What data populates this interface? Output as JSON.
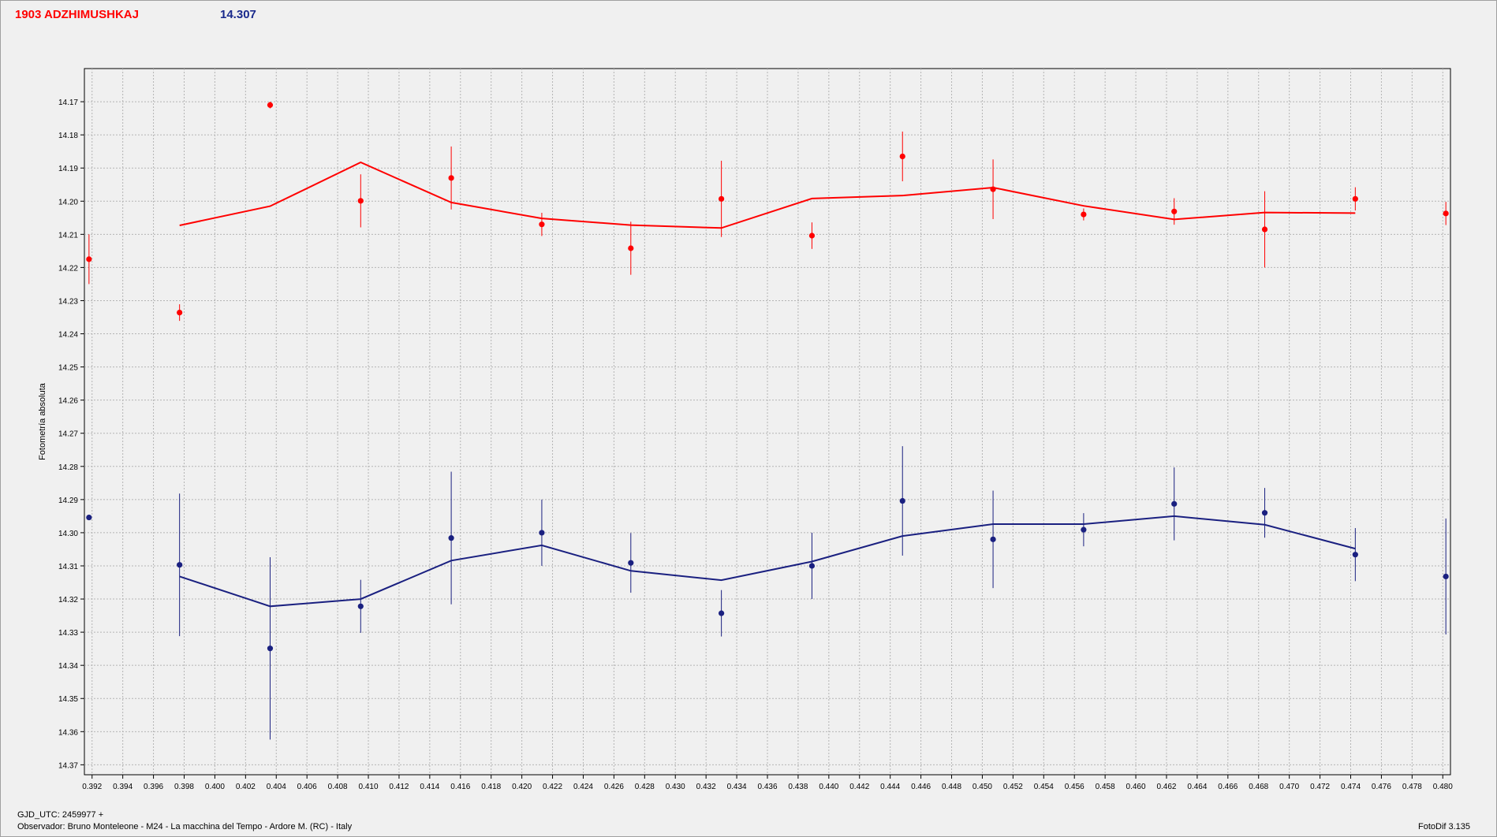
{
  "header": {
    "object_name": "1903 ADZHIMUSHKAJ",
    "reference_mag": "14.307"
  },
  "footer": {
    "gjd_label": "GJD_UTC: 2459977 +",
    "observer": "Observador: Bruno Monteleone - M24 - La macchina del Tempo - Ardore M. (RC) - Italy",
    "software": "FotoDif 3.135"
  },
  "colors": {
    "series_red": "#ff0000",
    "series_blue": "#1a2080",
    "grid": "#b4b4b4",
    "plot_bg": "#f0f0f0",
    "background": "#f0f0f0"
  },
  "chart_data": {
    "type": "scatter",
    "title": "",
    "xlabel": "",
    "ylabel": "Fotometría absoluta",
    "xlim": [
      0.3915,
      0.4805
    ],
    "ylim": [
      14.16,
      14.373
    ],
    "y_inverted": true,
    "grid": true,
    "x_ticks": [
      "0.392",
      "0.394",
      "0.396",
      "0.398",
      "0.400",
      "0.402",
      "0.404",
      "0.406",
      "0.408",
      "0.410",
      "0.412",
      "0.414",
      "0.416",
      "0.418",
      "0.420",
      "0.422",
      "0.424",
      "0.426",
      "0.428",
      "0.430",
      "0.432",
      "0.434",
      "0.436",
      "0.438",
      "0.440",
      "0.442",
      "0.444",
      "0.446",
      "0.448",
      "0.450",
      "0.452",
      "0.454",
      "0.456",
      "0.458",
      "0.460",
      "0.462",
      "0.464",
      "0.466",
      "0.468",
      "0.470",
      "0.472",
      "0.474",
      "0.476",
      "0.478",
      "0.480"
    ],
    "y_ticks": [
      "14.17",
      "14.18",
      "14.19",
      "14.20",
      "14.21",
      "14.22",
      "14.23",
      "14.24",
      "14.25",
      "14.26",
      "14.27",
      "14.28",
      "14.29",
      "14.30",
      "14.31",
      "14.32",
      "14.33",
      "14.34",
      "14.35",
      "14.36",
      "14.37"
    ],
    "series": [
      {
        "color": "#ff0000",
        "x": [
          0.3918,
          0.3977,
          0.4036,
          0.4095,
          0.4154,
          0.4213,
          0.4271,
          0.433,
          0.4389,
          0.4448,
          0.4507,
          0.4566,
          0.4625,
          0.4684,
          0.4743,
          0.4802
        ],
        "y": [
          14.2175,
          14.2336,
          14.171,
          14.1999,
          14.193,
          14.207,
          14.2142,
          14.1993,
          14.2104,
          14.1865,
          14.1964,
          14.204,
          14.2031,
          14.2085,
          14.1993,
          14.2037
        ],
        "err": [
          0.0075,
          0.0025,
          0.001,
          0.008,
          0.0095,
          0.0035,
          0.008,
          0.0115,
          0.004,
          0.0075,
          0.009,
          0.0018,
          0.004,
          0.0115,
          0.0035,
          0.0035
        ],
        "fit_x": [
          0.3977,
          0.4036,
          0.4095,
          0.4154,
          0.4213,
          0.4271,
          0.433,
          0.4389,
          0.4448,
          0.4507,
          0.4566,
          0.4625,
          0.4684,
          0.4743
        ],
        "fit_y": [
          14.2073,
          14.2015,
          14.1883,
          14.2004,
          14.2052,
          14.2072,
          14.2081,
          14.1992,
          14.1983,
          14.1959,
          14.2014,
          14.2055,
          14.2034,
          14.2036
        ]
      },
      {
        "color": "#1a2080",
        "x": [
          0.3918,
          0.3977,
          0.4036,
          0.4095,
          0.4154,
          0.4213,
          0.4271,
          0.433,
          0.4389,
          0.4448,
          0.4507,
          0.4566,
          0.4625,
          0.4684,
          0.4743,
          0.4802
        ],
        "y": [
          14.2954,
          14.3097,
          14.3349,
          14.3222,
          14.3016,
          14.3,
          14.3091,
          14.3243,
          14.31,
          14.2904,
          14.302,
          14.2991,
          14.2913,
          14.294,
          14.3066,
          14.3132
        ],
        "err": [
          0.0008,
          0.0215,
          0.0275,
          0.008,
          0.02,
          0.01,
          0.009,
          0.007,
          0.01,
          0.0165,
          0.0147,
          0.005,
          0.011,
          0.0075,
          0.008,
          0.0175
        ],
        "fit_x": [
          0.3977,
          0.4036,
          0.4095,
          0.4154,
          0.4213,
          0.4271,
          0.433,
          0.4389,
          0.4448,
          0.4507,
          0.4566,
          0.4625,
          0.4684,
          0.4743
        ],
        "fit_y": [
          14.3132,
          14.3222,
          14.32,
          14.3084,
          14.3038,
          14.3115,
          14.3143,
          14.3087,
          14.301,
          14.2974,
          14.2974,
          14.295,
          14.2976,
          14.3048
        ]
      }
    ]
  }
}
